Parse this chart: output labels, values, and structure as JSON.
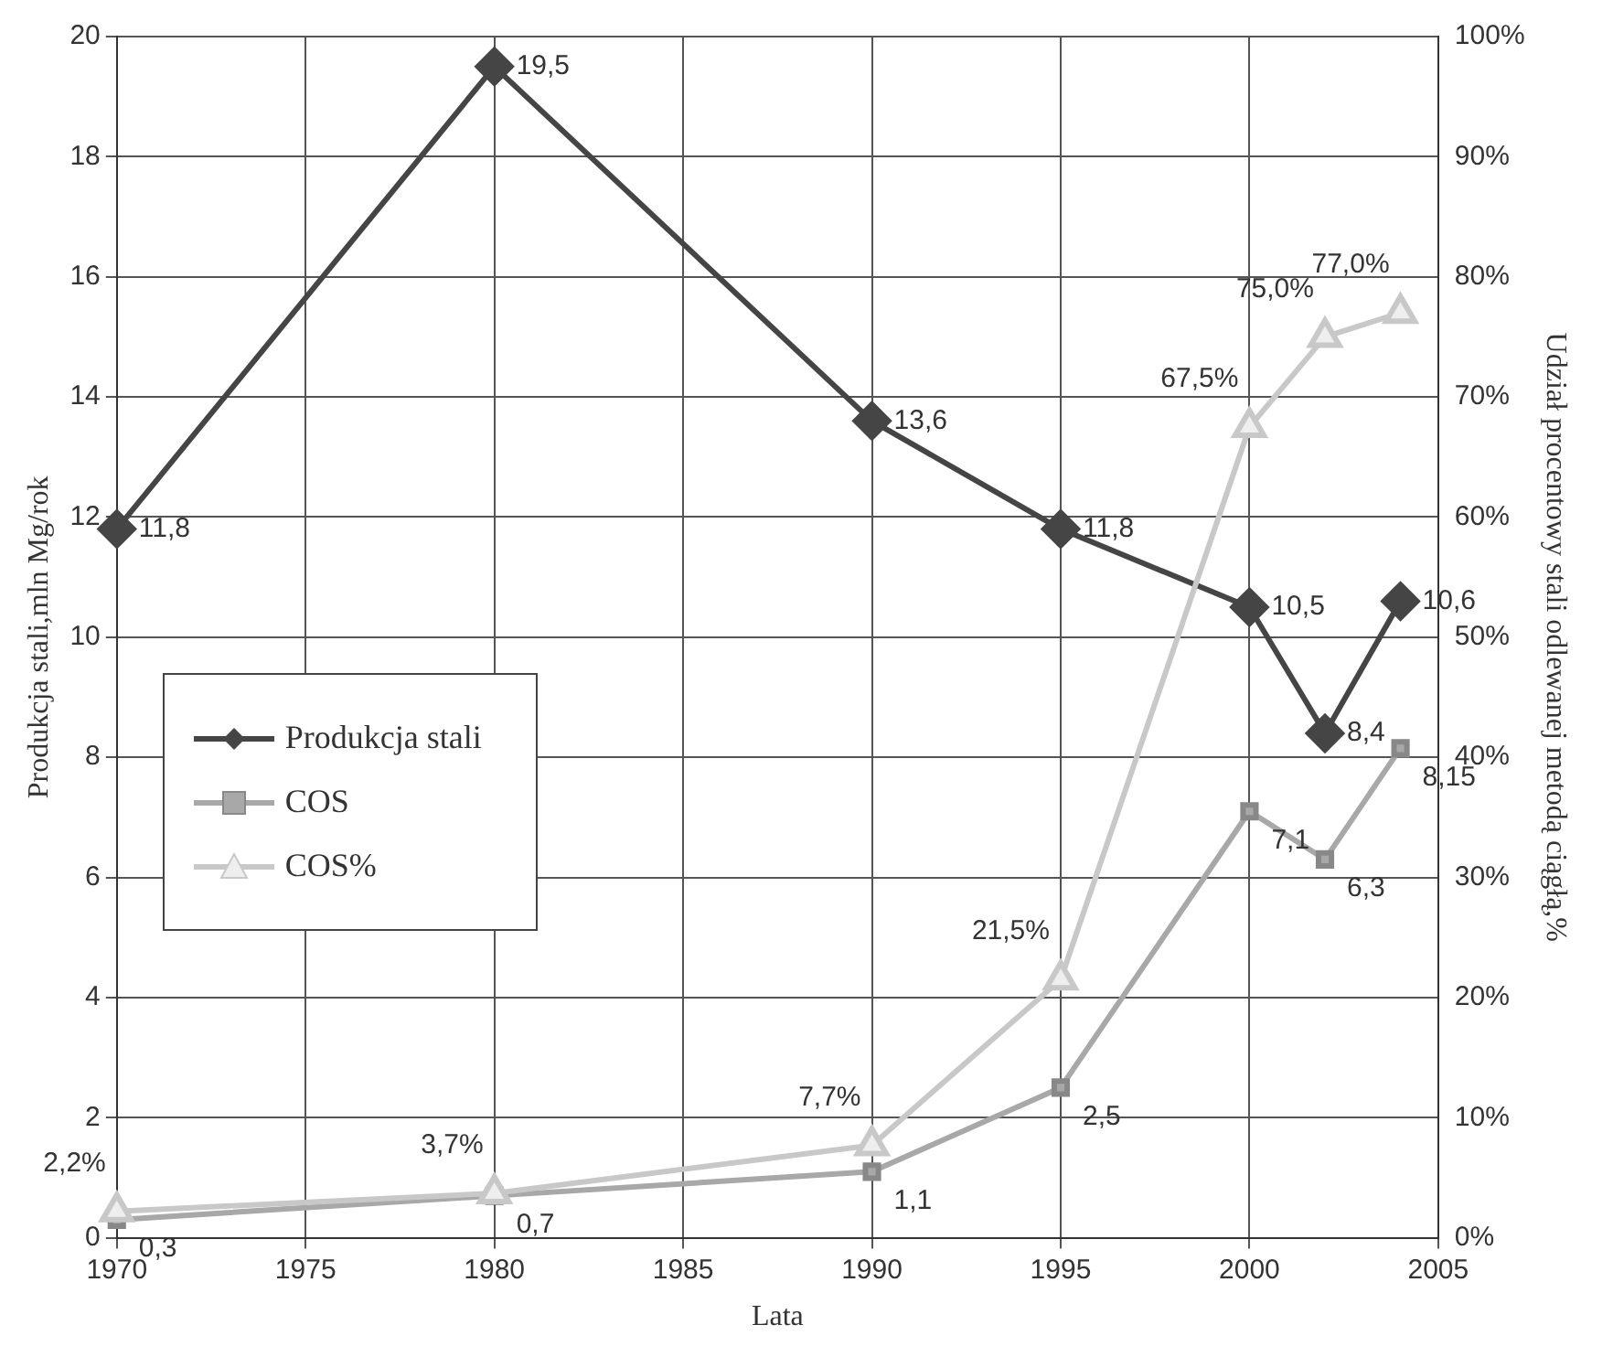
{
  "chart_data": {
    "type": "line",
    "xlabel": "Lata",
    "ylabel": "Produkcja stali,mln Mg/rok",
    "y2label": "Udział procentowy stali odlewanej metodą ciągłą,%",
    "x": [
      1970,
      1980,
      1990,
      1995,
      2000,
      2002,
      2004
    ],
    "series": [
      {
        "name": "Produkcja stali",
        "color": "#454545",
        "marker": "diamond",
        "values": [
          11.8,
          19.5,
          13.6,
          11.8,
          10.5,
          8.4,
          10.6
        ],
        "value_labels": [
          "11,8",
          "19,5",
          "13,6",
          "11,8",
          "10,5",
          "8,4",
          "10,6"
        ]
      },
      {
        "name": "COS",
        "color": "#a8a8a8",
        "marker": "square",
        "values": [
          0.3,
          0.7,
          1.1,
          2.5,
          7.1,
          6.3,
          8.15
        ],
        "value_labels": [
          "0,3",
          "0,7",
          "1,1",
          "2,5",
          "7,1",
          "6,3",
          "8,15"
        ]
      },
      {
        "name": "COS%",
        "color": "#c8c8c8",
        "marker": "triangle",
        "axis": "y2",
        "values": [
          2.2,
          3.7,
          7.7,
          21.5,
          67.5,
          75.0,
          77.0
        ],
        "value_labels": [
          "2,2%",
          "3,7%",
          "7,7%",
          "21,5%",
          "67,5%",
          "75,0%",
          "77,0%"
        ]
      }
    ],
    "xlim": [
      1970,
      2005
    ],
    "xticks": [
      1970,
      1975,
      1980,
      1985,
      1990,
      1995,
      2000,
      2005
    ],
    "ylim": [
      0,
      20
    ],
    "yticks": [
      0,
      2,
      4,
      6,
      8,
      10,
      12,
      14,
      16,
      18,
      20
    ],
    "y2lim": [
      0,
      100
    ],
    "y2ticks": [
      {
        "value": 0,
        "label": "0%"
      },
      {
        "value": 10,
        "label": "10%"
      },
      {
        "value": 20,
        "label": "20%"
      },
      {
        "value": 30,
        "label": "30%"
      },
      {
        "value": 40,
        "label": "40%"
      },
      {
        "value": 50,
        "label": "50%"
      },
      {
        "value": 60,
        "label": "60%"
      },
      {
        "value": 70,
        "label": "70%"
      },
      {
        "value": 80,
        "label": "80%"
      },
      {
        "value": 90,
        "label": "90%"
      },
      {
        "value": 100,
        "label": "100%"
      }
    ],
    "grid": true,
    "legend": "left",
    "line_style": "solid"
  }
}
